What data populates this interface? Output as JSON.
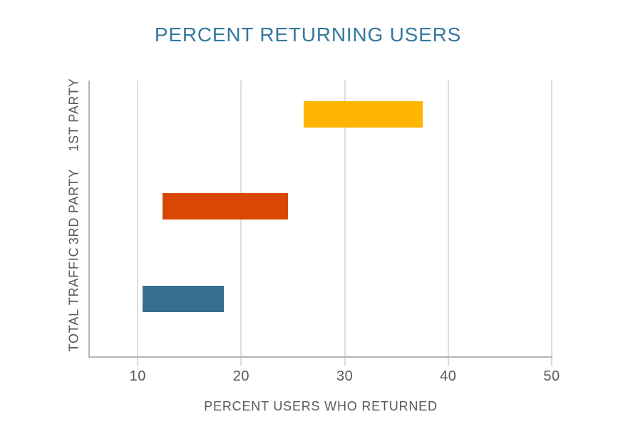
{
  "title": "PERCENT RETURNING USERS",
  "colors": {
    "title": "#35789F",
    "labels": "#58585A",
    "axis_line": "#B5B5B7",
    "gridline": "#DCDCDC"
  },
  "chart_data": {
    "type": "bar",
    "orientation": "horizontal",
    "title": "PERCENT RETURNING USERS",
    "xlabel": "PERCENT USERS WHO RETURNED",
    "ylabel": "",
    "categories": [
      "1ST PARTY",
      "3RD PARTY",
      "TOTAL TRAFFIC"
    ],
    "series": [
      {
        "name": "1ST PARTY",
        "start": 26.0,
        "end": 37.5,
        "color": "#FFB400"
      },
      {
        "name": "3RD PARTY",
        "start": 12.4,
        "end": 24.5,
        "color": "#D84703"
      },
      {
        "name": "TOTAL TRAFFIC",
        "start": 10.5,
        "end": 18.3,
        "color": "#346F91"
      }
    ],
    "x_ticks": [
      10,
      20,
      30,
      40,
      50
    ],
    "x_range": [
      5.37,
      50
    ],
    "grid": "vertical-only",
    "legend": "none"
  }
}
